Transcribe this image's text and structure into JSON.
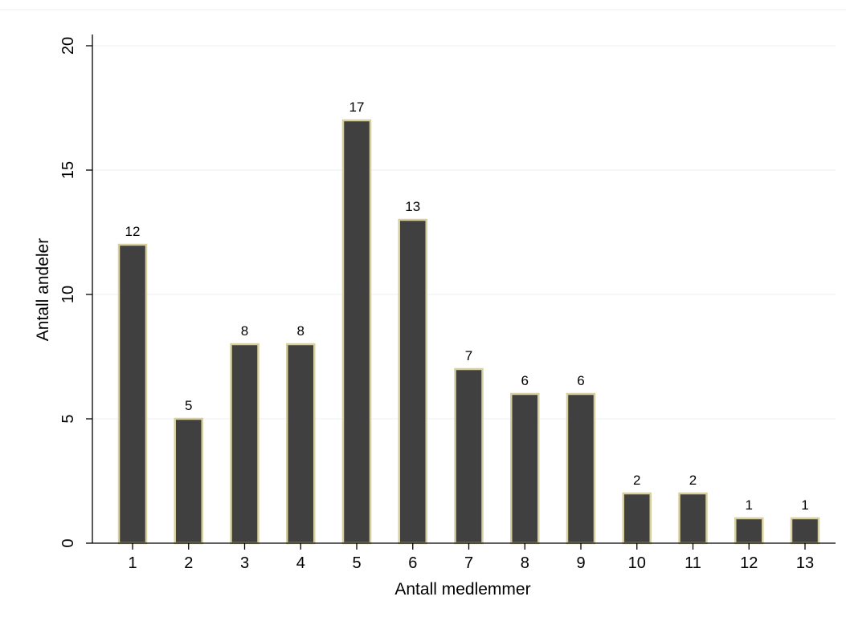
{
  "chart_data": {
    "type": "bar",
    "categories": [
      "1",
      "2",
      "3",
      "4",
      "5",
      "6",
      "7",
      "8",
      "9",
      "10",
      "11",
      "12",
      "13"
    ],
    "values": [
      12,
      5,
      8,
      8,
      17,
      13,
      7,
      6,
      6,
      2,
      2,
      1,
      1
    ],
    "data_labels": [
      "12",
      "5",
      "8",
      "8",
      "17",
      "13",
      "7",
      "6",
      "6",
      "2",
      "2",
      "1",
      "1"
    ],
    "xlabel": "Antall medlemmer",
    "ylabel": "Antall andeler",
    "ylim": [
      0,
      20
    ],
    "yticks": [
      "0",
      "5",
      "10",
      "15",
      "20"
    ],
    "grid": "horizontal",
    "legend": "none",
    "colors": {
      "bar_fill": "#404040",
      "bar_outline": "#d7cf9e",
      "grid": "#eaf2f3",
      "axis": "#000000"
    }
  }
}
